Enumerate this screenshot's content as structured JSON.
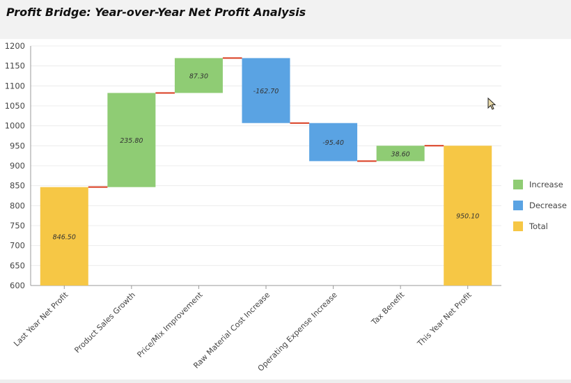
{
  "page": {
    "title": "Profit Bridge: Year-over-Year Net Profit Analysis"
  },
  "colors": {
    "increase": "#8fcc74",
    "decrease": "#5aa3e3",
    "total": "#f6c745",
    "connector": "#d93b1f"
  },
  "chart_data": {
    "type": "waterfall",
    "title": "Profit Bridge: Year-over-Year Net Profit Analysis",
    "ylim": [
      600,
      1200
    ],
    "yticks": [
      600,
      650,
      700,
      750,
      800,
      850,
      900,
      950,
      1000,
      1050,
      1100,
      1150,
      1200
    ],
    "grid": true,
    "legend_position": "right",
    "legend": [
      {
        "label": "Increase",
        "kind": "increase"
      },
      {
        "label": "Decrease",
        "kind": "decrease"
      },
      {
        "label": "Total",
        "kind": "total"
      }
    ],
    "categories": [
      "Last Year Net Profit",
      "Product Sales Growth",
      "Price/Mix Improvement",
      "Raw Material Cost Increase",
      "Operating Expense Increase",
      "Tax Benefit",
      "This Year Net Profit"
    ],
    "steps": [
      {
        "category": "Last Year Net Profit",
        "value": 846.5,
        "kind": "total",
        "label": "846.50"
      },
      {
        "category": "Product Sales Growth",
        "value": 235.8,
        "kind": "increase",
        "label": "235.80"
      },
      {
        "category": "Price/Mix Improvement",
        "value": 87.3,
        "kind": "increase",
        "label": "87.30"
      },
      {
        "category": "Raw Material Cost Increase",
        "value": -162.7,
        "kind": "decrease",
        "label": "-162.70"
      },
      {
        "category": "Operating Expense Increase",
        "value": -95.4,
        "kind": "decrease",
        "label": "-95.40"
      },
      {
        "category": "Tax Benefit",
        "value": 38.6,
        "kind": "increase",
        "label": "38.60"
      },
      {
        "category": "This Year Net Profit",
        "value": 950.1,
        "kind": "total",
        "label": "950.10"
      }
    ]
  }
}
